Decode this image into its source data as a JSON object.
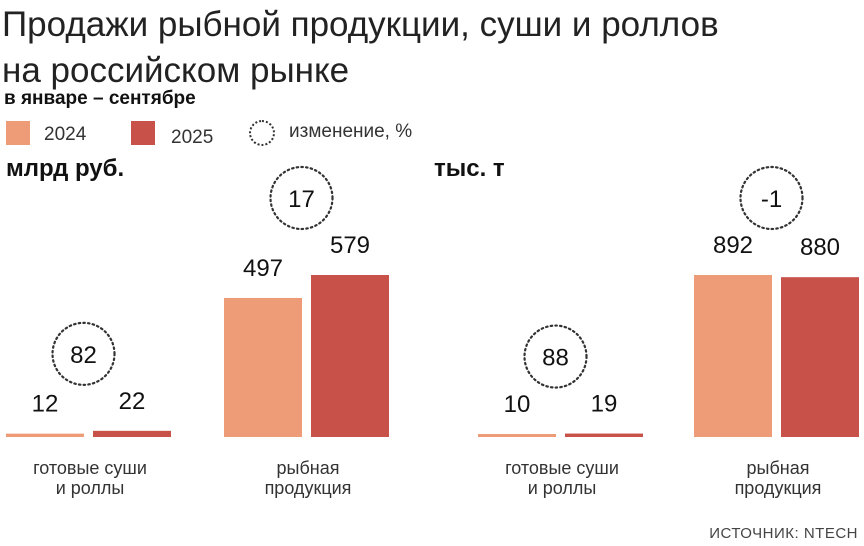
{
  "header": {
    "title_line1": "Продажи рыбной продукции, суши и роллов",
    "title_line2": "на российском рынке",
    "subtitle": "в январе – сентябре"
  },
  "legend": {
    "s2024": "2024",
    "s2025": "2025",
    "change": "изменение, %"
  },
  "colors": {
    "s2024": "#ee9c78",
    "s2025": "#c8524a"
  },
  "footer": {
    "source": "ИСТОЧНИК: NTECH"
  },
  "chart_data": [
    {
      "type": "bar",
      "unit": "млрд руб.",
      "categories": [
        "готовые суши\nи роллы",
        "рыбная\nпродукция"
      ],
      "series": [
        {
          "name": "2024",
          "values": [
            12,
            497
          ]
        },
        {
          "name": "2025",
          "values": [
            22,
            579
          ]
        }
      ],
      "change_pct": [
        "82",
        "17"
      ]
    },
    {
      "type": "bar",
      "unit": "тыс. т",
      "categories": [
        "готовые суши\nи роллы",
        "рыбная\nпродукция"
      ],
      "series": [
        {
          "name": "2024",
          "values": [
            10,
            892
          ]
        },
        {
          "name": "2025",
          "values": [
            19,
            880
          ]
        }
      ],
      "change_pct": [
        "88",
        "-1"
      ]
    }
  ]
}
